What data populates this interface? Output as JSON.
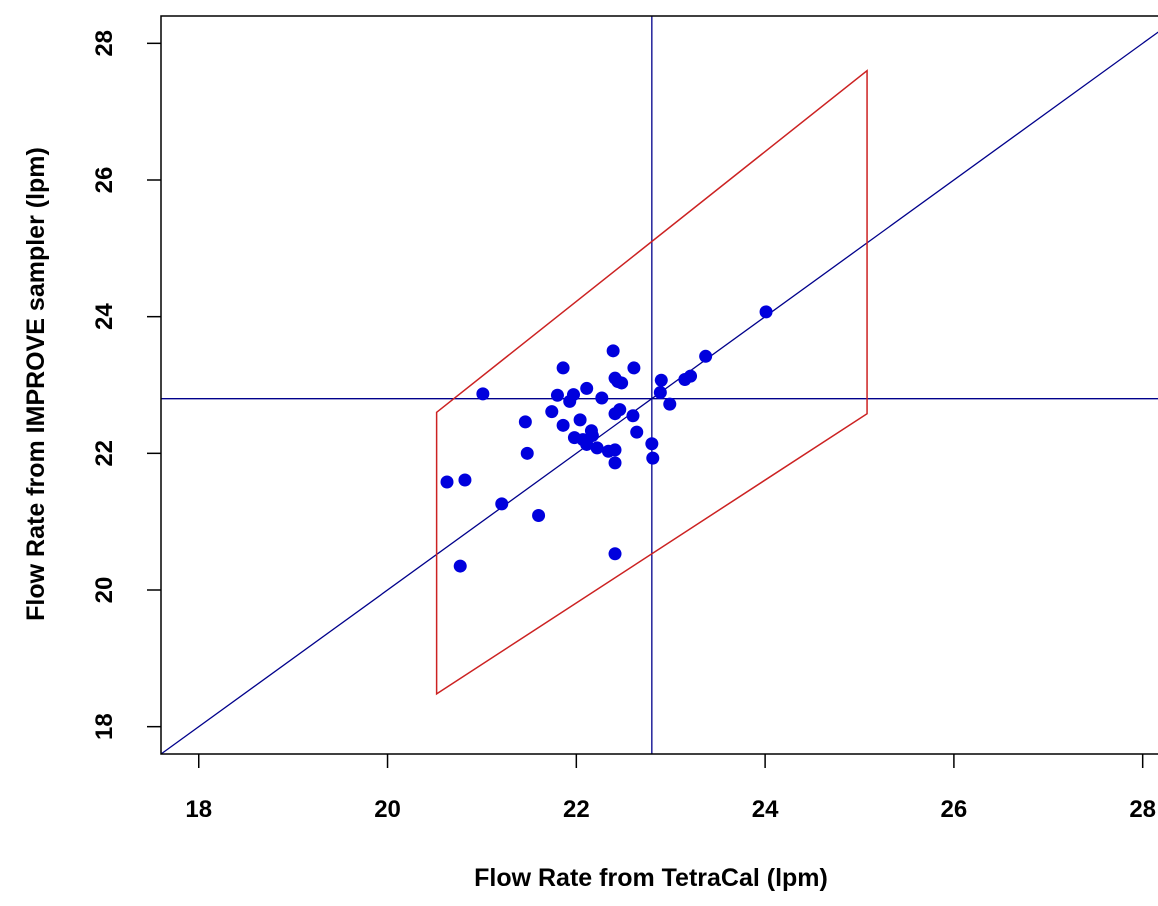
{
  "chart_data": {
    "type": "scatter",
    "title": "",
    "xlabel": "Flow Rate from TetraCal (lpm)",
    "ylabel": "Flow Rate from IMPROVE sampler (lpm)",
    "xlim": [
      17.6,
      28.3
    ],
    "ylim": [
      17.6,
      28.4
    ],
    "xticks": [
      18,
      20,
      22,
      24,
      26,
      28
    ],
    "yticks": [
      18,
      20,
      22,
      24,
      26,
      28
    ],
    "xtick_labels": [
      "18",
      "20",
      "22",
      "24",
      "26",
      "28"
    ],
    "ytick_labels": [
      "18",
      "20",
      "22",
      "24",
      "26",
      "28"
    ],
    "grid": false,
    "series": [
      {
        "color": "#0000dd",
        "points": [
          [
            20.63,
            21.58
          ],
          [
            20.82,
            21.61
          ],
          [
            20.77,
            20.35
          ],
          [
            21.01,
            22.87
          ],
          [
            21.21,
            21.26
          ],
          [
            21.46,
            22.46
          ],
          [
            21.48,
            22.0
          ],
          [
            21.6,
            21.09
          ],
          [
            21.74,
            22.61
          ],
          [
            21.8,
            22.85
          ],
          [
            21.86,
            23.25
          ],
          [
            21.86,
            22.41
          ],
          [
            21.93,
            22.76
          ],
          [
            21.97,
            22.86
          ],
          [
            21.98,
            22.23
          ],
          [
            22.04,
            22.49
          ],
          [
            22.07,
            22.2
          ],
          [
            22.11,
            22.13
          ],
          [
            22.11,
            22.95
          ],
          [
            22.16,
            22.33
          ],
          [
            22.17,
            22.26
          ],
          [
            22.22,
            22.08
          ],
          [
            22.27,
            22.81
          ],
          [
            22.34,
            22.03
          ],
          [
            22.39,
            23.5
          ],
          [
            22.41,
            21.86
          ],
          [
            22.41,
            23.1
          ],
          [
            22.41,
            22.58
          ],
          [
            22.41,
            22.05
          ],
          [
            22.41,
            20.53
          ],
          [
            22.44,
            23.05
          ],
          [
            22.46,
            22.64
          ],
          [
            22.48,
            23.03
          ],
          [
            22.6,
            22.55
          ],
          [
            22.61,
            23.25
          ],
          [
            22.64,
            22.31
          ],
          [
            22.8,
            22.14
          ],
          [
            22.81,
            21.93
          ],
          [
            22.89,
            22.89
          ],
          [
            22.9,
            23.07
          ],
          [
            22.99,
            22.72
          ],
          [
            23.15,
            23.08
          ],
          [
            23.21,
            23.13
          ],
          [
            23.37,
            23.42
          ],
          [
            24.01,
            24.07
          ]
        ]
      }
    ],
    "reference_lines": {
      "one_to_one": {
        "color": "#00008b"
      },
      "vertical_x": 22.8,
      "horizontal_y": 22.8,
      "line_color": "#00008b"
    },
    "tolerance_region": {
      "color": "#cc2222",
      "vertices": [
        [
          20.52,
          18.48
        ],
        [
          20.52,
          22.6
        ],
        [
          25.08,
          27.6
        ],
        [
          25.08,
          22.58
        ]
      ]
    }
  }
}
